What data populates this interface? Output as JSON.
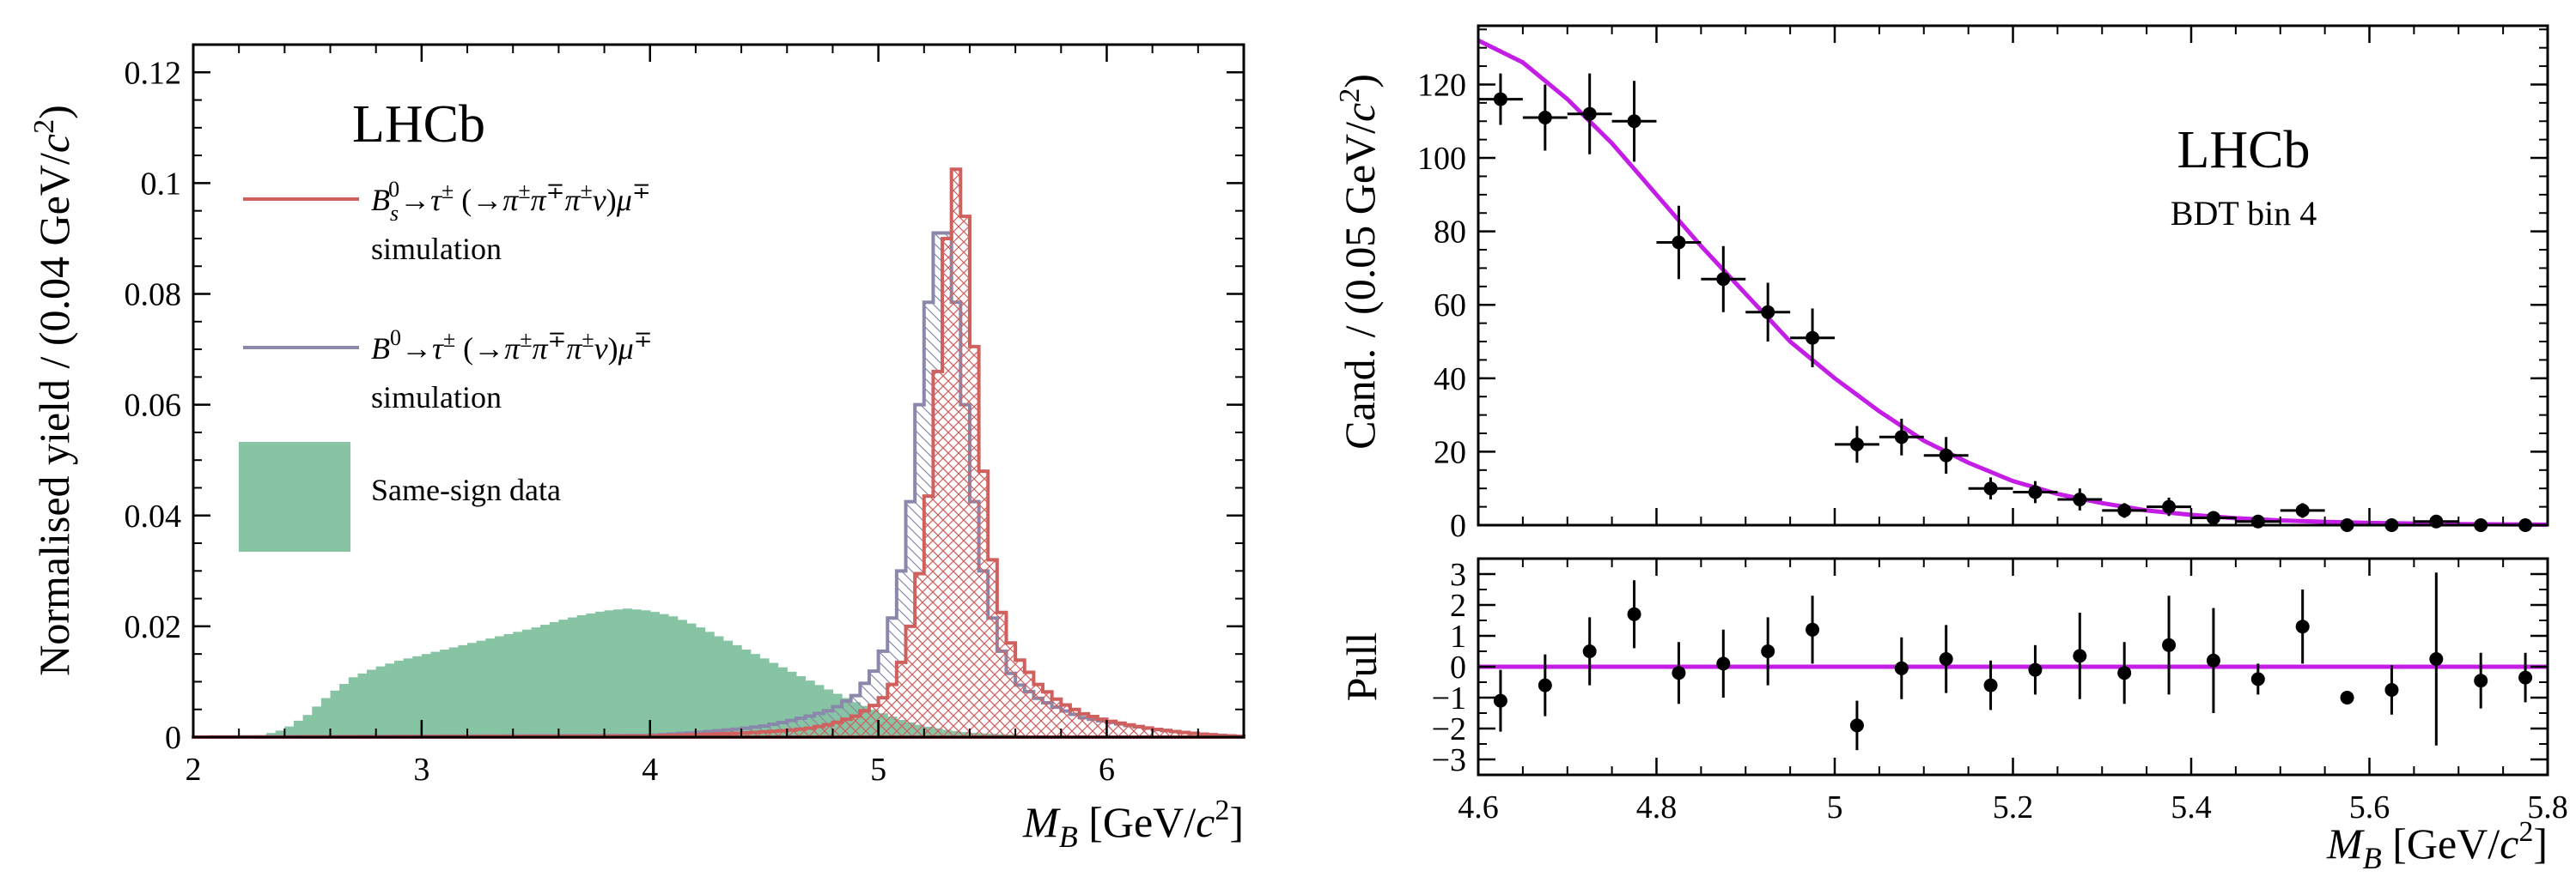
{
  "chart_data": [
    {
      "id": "left",
      "type": "histogram",
      "xlabel": "M_B [GeV/c^2]",
      "ylabel": "Normalised yield / (0.04 GeV/c^2)",
      "xlim": [
        2,
        6.6
      ],
      "ylim": [
        0,
        0.125
      ],
      "xticks": [
        2,
        3,
        4,
        5,
        6
      ],
      "yticks": [
        0,
        0.02,
        0.04,
        0.06,
        0.08,
        0.1,
        0.12
      ],
      "ytick_labels": [
        "0",
        "0.02",
        "0.04",
        "0.06",
        "0.08",
        "0.1",
        "0.12"
      ],
      "bin_width": 0.04,
      "annotation": "LHCb",
      "legend_position": "top-left",
      "legend": {
        "bs": {
          "line1": "B_s^0 → τ^± (→π^±π^∓π^±ν)μ^∓",
          "line2": "simulation"
        },
        "b0": {
          "line1": "B^0 → τ^± (→π^±π^∓π^±ν)μ^∓",
          "line2": "simulation"
        },
        "ss": {
          "line1": "Same-sign data"
        }
      },
      "colors": {
        "bs": "#d0605e",
        "b0": "#8a88aa",
        "ss": "#86c4a4"
      },
      "series": [
        {
          "key": "ss",
          "name": "Same-sign data",
          "style": "filled",
          "points": [
            [
              2.0,
              0
            ],
            [
              2.3,
              0.0003
            ],
            [
              2.4,
              0.0014
            ],
            [
              2.5,
              0.004
            ],
            [
              2.6,
              0.0078
            ],
            [
              2.7,
              0.0108
            ],
            [
              2.8,
              0.0125
            ],
            [
              2.9,
              0.0138
            ],
            [
              3.0,
              0.0148
            ],
            [
              3.1,
              0.0158
            ],
            [
              3.2,
              0.0168
            ],
            [
              3.3,
              0.0178
            ],
            [
              3.4,
              0.0188
            ],
            [
              3.5,
              0.0198
            ],
            [
              3.6,
              0.021
            ],
            [
              3.7,
              0.022
            ],
            [
              3.8,
              0.0228
            ],
            [
              3.9,
              0.0232
            ],
            [
              4.0,
              0.0228
            ],
            [
              4.1,
              0.0218
            ],
            [
              4.2,
              0.0202
            ],
            [
              4.3,
              0.0182
            ],
            [
              4.4,
              0.0162
            ],
            [
              4.5,
              0.0142
            ],
            [
              4.6,
              0.0122
            ],
            [
              4.7,
              0.0102
            ],
            [
              4.8,
              0.0082
            ],
            [
              4.9,
              0.0063
            ],
            [
              5.0,
              0.0046
            ],
            [
              5.1,
              0.0031
            ],
            [
              5.2,
              0.002
            ],
            [
              5.3,
              0.0013
            ],
            [
              5.4,
              0.0008
            ],
            [
              5.6,
              0.0004
            ],
            [
              5.8,
              0.0001
            ],
            [
              6.0,
              0
            ]
          ]
        },
        {
          "key": "b0",
          "name": "B0 simulation",
          "style": "hatched-step",
          "points": [
            [
              2.0,
              0
            ],
            [
              4.0,
              0.0003
            ],
            [
              4.2,
              0.0008
            ],
            [
              4.4,
              0.0015
            ],
            [
              4.5,
              0.002
            ],
            [
              4.6,
              0.0028
            ],
            [
              4.7,
              0.0038
            ],
            [
              4.8,
              0.005
            ],
            [
              4.9,
              0.0075
            ],
            [
              5.0,
              0.013
            ],
            [
              5.04,
              0.018
            ],
            [
              5.08,
              0.025
            ],
            [
              5.12,
              0.035
            ],
            [
              5.16,
              0.05
            ],
            [
              5.2,
              0.07
            ],
            [
              5.24,
              0.087
            ],
            [
              5.28,
              0.095
            ],
            [
              5.32,
              0.087
            ],
            [
              5.36,
              0.07
            ],
            [
              5.4,
              0.05
            ],
            [
              5.44,
              0.035
            ],
            [
              5.48,
              0.025
            ],
            [
              5.52,
              0.018
            ],
            [
              5.56,
              0.013
            ],
            [
              5.6,
              0.01
            ],
            [
              5.7,
              0.007
            ],
            [
              5.8,
              0.005
            ],
            [
              5.9,
              0.0035
            ],
            [
              6.0,
              0.0028
            ],
            [
              6.1,
              0.0021
            ],
            [
              6.2,
              0.0015
            ],
            [
              6.3,
              0.001
            ],
            [
              6.4,
              0.0006
            ],
            [
              6.5,
              0.0003
            ],
            [
              6.6,
              0.0001
            ]
          ]
        },
        {
          "key": "bs",
          "name": "Bs0 simulation",
          "style": "hatched-step",
          "points": [
            [
              2.0,
              0
            ],
            [
              4.0,
              0.0002
            ],
            [
              4.4,
              0.0007
            ],
            [
              4.6,
              0.0012
            ],
            [
              4.7,
              0.0016
            ],
            [
              4.8,
              0.0024
            ],
            [
              4.9,
              0.0038
            ],
            [
              5.0,
              0.0062
            ],
            [
              5.04,
              0.008
            ],
            [
              5.08,
              0.011
            ],
            [
              5.12,
              0.016
            ],
            [
              5.16,
              0.024
            ],
            [
              5.2,
              0.035
            ],
            [
              5.24,
              0.052
            ],
            [
              5.28,
              0.08
            ],
            [
              5.32,
              0.1
            ],
            [
              5.36,
              0.105
            ],
            [
              5.4,
              0.083
            ],
            [
              5.44,
              0.058
            ],
            [
              5.48,
              0.038
            ],
            [
              5.52,
              0.026
            ],
            [
              5.56,
              0.019
            ],
            [
              5.6,
              0.015
            ],
            [
              5.7,
              0.0095
            ],
            [
              5.8,
              0.0062
            ],
            [
              5.9,
              0.0042
            ],
            [
              6.0,
              0.003
            ],
            [
              6.1,
              0.0022
            ],
            [
              6.2,
              0.0015
            ],
            [
              6.3,
              0.001
            ],
            [
              6.4,
              0.0006
            ],
            [
              6.5,
              0.0003
            ],
            [
              6.6,
              0.0001
            ]
          ]
        }
      ]
    },
    {
      "id": "right-top",
      "type": "scatter-with-fit",
      "ylabel": "Cand. / (0.05 GeV/c^2)",
      "xlim": [
        4.6,
        5.8
      ],
      "ylim": [
        0,
        136
      ],
      "xticks": [
        4.6,
        4.8,
        5.0,
        5.2,
        5.4,
        5.6,
        5.8
      ],
      "yticks": [
        0,
        20,
        40,
        60,
        80,
        100,
        120
      ],
      "ytick_labels": [
        "0",
        "20",
        "40",
        "60",
        "80",
        "100",
        "120"
      ],
      "annotation": "LHCb",
      "subannotation": "BDT bin 4",
      "colors": {
        "fit": "#c41ee6",
        "points": "#000000"
      },
      "x_halfwidth": 0.025,
      "points": [
        {
          "x": 4.625,
          "y": 116,
          "err": 7
        },
        {
          "x": 4.675,
          "y": 111,
          "err": 9
        },
        {
          "x": 4.725,
          "y": 112,
          "err": 11
        },
        {
          "x": 4.775,
          "y": 110,
          "err": 11
        },
        {
          "x": 4.825,
          "y": 77,
          "err": 10
        },
        {
          "x": 4.875,
          "y": 67,
          "err": 9
        },
        {
          "x": 4.925,
          "y": 58,
          "err": 8
        },
        {
          "x": 4.975,
          "y": 51,
          "err": 8
        },
        {
          "x": 5.025,
          "y": 22,
          "err": 5
        },
        {
          "x": 5.075,
          "y": 24,
          "err": 5
        },
        {
          "x": 5.125,
          "y": 19,
          "err": 5
        },
        {
          "x": 5.175,
          "y": 10,
          "err": 3
        },
        {
          "x": 5.225,
          "y": 9,
          "err": 3
        },
        {
          "x": 5.275,
          "y": 7,
          "err": 3
        },
        {
          "x": 5.325,
          "y": 4,
          "err": 2
        },
        {
          "x": 5.375,
          "y": 5,
          "err": 2.5
        },
        {
          "x": 5.425,
          "y": 2,
          "err": 1.5
        },
        {
          "x": 5.475,
          "y": 1,
          "err": 1
        },
        {
          "x": 5.525,
          "y": 4,
          "err": 2
        },
        {
          "x": 5.575,
          "y": 0,
          "err": 0.8
        },
        {
          "x": 5.625,
          "y": 0,
          "err": 0.8
        },
        {
          "x": 5.675,
          "y": 1,
          "err": 1
        },
        {
          "x": 5.725,
          "y": 0,
          "err": 0.8
        },
        {
          "x": 5.775,
          "y": 0,
          "err": 0.8
        }
      ],
      "fit": [
        [
          4.6,
          132
        ],
        [
          4.65,
          126
        ],
        [
          4.7,
          116
        ],
        [
          4.75,
          104
        ],
        [
          4.8,
          90
        ],
        [
          4.85,
          76
        ],
        [
          4.9,
          63
        ],
        [
          4.95,
          50
        ],
        [
          5.0,
          40
        ],
        [
          5.05,
          31
        ],
        [
          5.1,
          23
        ],
        [
          5.15,
          17
        ],
        [
          5.2,
          12
        ],
        [
          5.25,
          8.5
        ],
        [
          5.3,
          6
        ],
        [
          5.35,
          4
        ],
        [
          5.4,
          2.8
        ],
        [
          5.45,
          1.9
        ],
        [
          5.5,
          1.3
        ],
        [
          5.55,
          0.9
        ],
        [
          5.6,
          0.6
        ],
        [
          5.7,
          0.3
        ],
        [
          5.8,
          0.15
        ]
      ]
    },
    {
      "id": "right-bottom",
      "type": "pull",
      "xlabel": "M_B [GeV/c^2]",
      "ylabel": "Pull",
      "xlim": [
        4.6,
        5.8
      ],
      "ylim": [
        -3.5,
        3.5
      ],
      "xticks": [
        4.6,
        4.8,
        5.0,
        5.2,
        5.4,
        5.6,
        5.8
      ],
      "xtick_labels": [
        "4.6",
        "4.8",
        "5",
        "5.2",
        "5.4",
        "5.6",
        "5.8"
      ],
      "yticks": [
        -3,
        -2,
        -1,
        0,
        1,
        2,
        3
      ],
      "ytick_labels": [
        "−3",
        "−2",
        "−1",
        "0",
        "1",
        "2",
        "3"
      ],
      "colors": {
        "zero": "#c41ee6",
        "points": "#000000"
      },
      "points": [
        {
          "x": 4.625,
          "y": -1.1,
          "err": 1
        },
        {
          "x": 4.675,
          "y": -0.6,
          "err": 1
        },
        {
          "x": 4.725,
          "y": 0.5,
          "err": 1.1
        },
        {
          "x": 4.775,
          "y": 1.7,
          "err": 1.1
        },
        {
          "x": 4.825,
          "y": -0.2,
          "err": 1
        },
        {
          "x": 4.875,
          "y": 0.1,
          "err": 1.1
        },
        {
          "x": 4.925,
          "y": 0.5,
          "err": 1.1
        },
        {
          "x": 4.975,
          "y": 1.2,
          "err": 1.1
        },
        {
          "x": 5.025,
          "y": -1.9,
          "err": 0.8
        },
        {
          "x": 5.075,
          "y": -0.05,
          "err": 1
        },
        {
          "x": 5.125,
          "y": 0.25,
          "err": 1.1
        },
        {
          "x": 5.175,
          "y": -0.6,
          "err": 0.8
        },
        {
          "x": 5.225,
          "y": -0.1,
          "err": 0.8
        },
        {
          "x": 5.275,
          "y": 0.35,
          "err": 1.4
        },
        {
          "x": 5.325,
          "y": -0.2,
          "err": 1
        },
        {
          "x": 5.375,
          "y": 0.7,
          "err": 1.6
        },
        {
          "x": 5.425,
          "y": 0.2,
          "err": 1.7
        },
        {
          "x": 5.475,
          "y": -0.4,
          "err": 0.5
        },
        {
          "x": 5.525,
          "y": 1.3,
          "err": 1.2
        },
        {
          "x": 5.575,
          "y": -1,
          "err": 0.2
        },
        {
          "x": 5.625,
          "y": -0.75,
          "err": 0.8
        },
        {
          "x": 5.675,
          "y": 0.25,
          "err": 2.8
        },
        {
          "x": 5.725,
          "y": -0.45,
          "err": 0.9
        },
        {
          "x": 5.775,
          "y": -0.35,
          "err": 0.8
        }
      ]
    }
  ]
}
